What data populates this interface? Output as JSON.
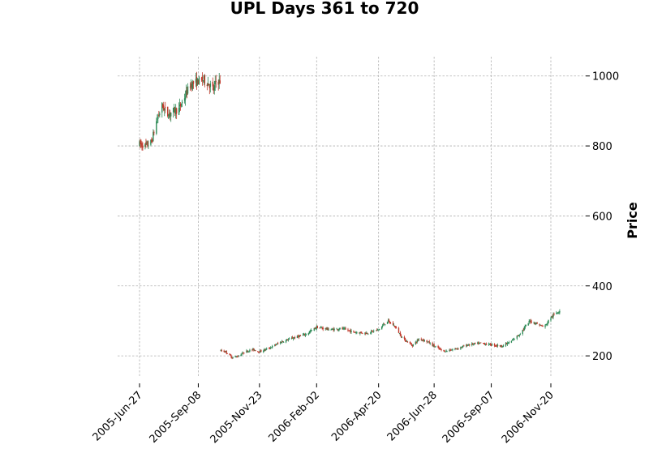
{
  "chart_data": {
    "type": "candlestick",
    "title": "UPL Days 361 to 720",
    "ylabel": "Price",
    "xlabel": "",
    "ylim": [
      140,
      1055
    ],
    "yticks": [
      200,
      400,
      600,
      800,
      1000
    ],
    "xticks": [
      "2005-Jun-27",
      "2005-Sep-08",
      "2005-Nov-23",
      "2006-Feb-02",
      "2006-Apr-20",
      "2006-Jun-28",
      "2006-Sep-07",
      "2006-Nov-20"
    ],
    "grid": true,
    "colors": {
      "up": "#2e8b57",
      "down": "#c0392b",
      "grid": "#b0b0b0"
    },
    "price_path": [
      [
        "2005-Jun-27",
        805
      ],
      [
        "2005-Jul-05",
        800
      ],
      [
        "2005-Jul-12",
        812
      ],
      [
        "2005-Jul-18",
        870
      ],
      [
        "2005-Jul-25",
        915
      ],
      [
        "2005-Aug-01",
        890
      ],
      [
        "2005-Aug-08",
        900
      ],
      [
        "2005-Aug-15",
        905
      ],
      [
        "2005-Aug-22",
        940
      ],
      [
        "2005-Aug-29",
        975
      ],
      [
        "2005-Sep-08",
        985
      ],
      [
        "2005-Sep-15",
        990
      ],
      [
        "2005-Sep-22",
        975
      ],
      [
        "2005-Sep-27",
        960
      ],
      [
        "2005-Sep-30",
        985
      ],
      [
        "2005-Oct-05",
        215
      ],
      [
        "2005-Oct-12",
        212
      ],
      [
        "2005-Oct-20",
        195
      ],
      [
        "2005-Oct-28",
        200
      ],
      [
        "2005-Nov-05",
        212
      ],
      [
        "2005-Nov-15",
        218
      ],
      [
        "2005-Nov-23",
        212
      ],
      [
        "2005-Dec-05",
        222
      ],
      [
        "2005-Dec-20",
        240
      ],
      [
        "2006-Jan-05",
        252
      ],
      [
        "2006-Jan-20",
        262
      ],
      [
        "2006-Feb-02",
        282
      ],
      [
        "2006-Feb-20",
        275
      ],
      [
        "2006-Mar-05",
        278
      ],
      [
        "2006-Mar-20",
        268
      ],
      [
        "2006-Apr-05",
        265
      ],
      [
        "2006-Apr-20",
        275
      ],
      [
        "2006-May-01",
        300
      ],
      [
        "2006-May-10",
        285
      ],
      [
        "2006-May-20",
        250
      ],
      [
        "2006-Jun-01",
        230
      ],
      [
        "2006-Jun-10",
        250
      ],
      [
        "2006-Jun-20",
        240
      ],
      [
        "2006-Jun-28",
        228
      ],
      [
        "2006-Jul-10",
        213
      ],
      [
        "2006-Jul-25",
        220
      ],
      [
        "2006-Aug-10",
        232
      ],
      [
        "2006-Aug-25",
        236
      ],
      [
        "2006-Sep-07",
        232
      ],
      [
        "2006-Sep-20",
        228
      ],
      [
        "2006-Oct-01",
        240
      ],
      [
        "2006-Oct-12",
        262
      ],
      [
        "2006-Oct-25",
        300
      ],
      [
        "2006-Nov-05",
        290
      ],
      [
        "2006-Nov-12",
        282
      ],
      [
        "2006-Nov-20",
        310
      ],
      [
        "2006-Dec-01",
        330
      ]
    ]
  }
}
